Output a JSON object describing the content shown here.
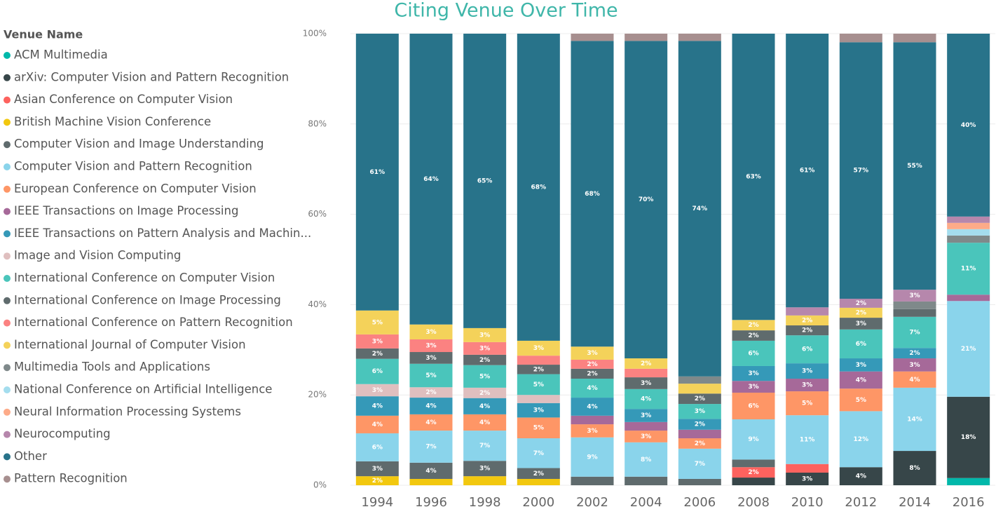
{
  "chart_data": {
    "type": "stacked_bar_100",
    "title": "Citing Venue Over Time",
    "legend_title": "Venue Name",
    "categories": [
      "1994",
      "1996",
      "1998",
      "2000",
      "2002",
      "2004",
      "2006",
      "2008",
      "2010",
      "2012",
      "2014",
      "2016"
    ],
    "ylim": [
      0,
      100
    ],
    "yticks": [
      {
        "value": 0,
        "label": "0%"
      },
      {
        "value": 20,
        "label": "20%"
      },
      {
        "value": 40,
        "label": "40%"
      },
      {
        "value": 60,
        "label": "60%"
      },
      {
        "value": 80,
        "label": "80%"
      },
      {
        "value": 100,
        "label": "100%"
      }
    ],
    "grid": true,
    "series": [
      {
        "name": "ACM Multimedia",
        "color": "#01B8AA",
        "values": [
          null,
          null,
          null,
          null,
          null,
          null,
          null,
          null,
          null,
          null,
          null,
          1.6
        ],
        "value_labels": [
          null,
          null,
          null,
          null,
          null,
          null,
          null,
          null,
          null,
          null,
          null,
          null
        ]
      },
      {
        "name": "arXiv: Computer Vision and Pattern Recognition",
        "color": "#374649",
        "values": [
          null,
          null,
          null,
          null,
          null,
          null,
          null,
          1.7,
          2.8,
          4,
          7.6,
          18
        ],
        "value_labels": [
          null,
          null,
          null,
          null,
          null,
          null,
          null,
          null,
          "3%",
          "4%",
          "8%",
          "18%"
        ]
      },
      {
        "name": "Asian Conference on Computer Vision",
        "color": "#FD625E",
        "values": [
          null,
          null,
          null,
          null,
          null,
          null,
          null,
          2.3,
          1.9,
          null,
          null,
          null
        ],
        "value_labels": [
          null,
          null,
          null,
          null,
          null,
          null,
          null,
          "2%",
          null,
          null,
          null,
          null
        ]
      },
      {
        "name": "British Machine Vision Conference",
        "color": "#F2C80F",
        "values": [
          2,
          1.4,
          2,
          1.4,
          null,
          null,
          null,
          null,
          null,
          null,
          null,
          null
        ],
        "value_labels": [
          "2%",
          null,
          null,
          null,
          null,
          null,
          null,
          null,
          null,
          null,
          null,
          null
        ]
      },
      {
        "name": "Computer Vision and Image Understanding",
        "color": "#5F6B6D",
        "values": [
          3.3,
          3.6,
          3.4,
          2.4,
          1.9,
          1.9,
          1.4,
          1.7,
          null,
          null,
          null,
          null
        ],
        "value_labels": [
          "3%",
          "4%",
          "3%",
          "2%",
          null,
          null,
          null,
          null,
          null,
          null,
          null,
          null
        ]
      },
      {
        "name": "Computer Vision and Pattern Recognition",
        "color": "#8AD4EB",
        "values": [
          6.2,
          7.1,
          6.7,
          6.6,
          8.7,
          7.6,
          6.7,
          8.9,
          10.8,
          12.4,
          14,
          21.2
        ],
        "value_labels": [
          "6%",
          "7%",
          "7%",
          "7%",
          "9%",
          "8%",
          "7%",
          "9%",
          "11%",
          "12%",
          "14%",
          "21%"
        ]
      },
      {
        "name": "European Conference on Computer Vision",
        "color": "#FE9666",
        "values": [
          3.9,
          3.6,
          3.6,
          4.6,
          2.9,
          2.6,
          2.3,
          5.9,
          5.3,
          5,
          3.6,
          null
        ],
        "value_labels": [
          "4%",
          "4%",
          "4%",
          "5%",
          "3%",
          "3%",
          "2%",
          "6%",
          "5%",
          "5%",
          "4%",
          null
        ]
      },
      {
        "name": "IEEE Transactions on Image Processing",
        "color": "#A66999",
        "values": [
          null,
          null,
          null,
          null,
          1.9,
          1.9,
          1.9,
          2.6,
          2.8,
          3.8,
          2.9,
          1.4
        ],
        "value_labels": [
          null,
          null,
          null,
          null,
          null,
          null,
          null,
          "3%",
          "3%",
          "4%",
          "3%",
          null
        ]
      },
      {
        "name": "IEEE Transactions on Pattern Analysis and Machin...",
        "color": "#3599B8",
        "values": [
          4.3,
          3.7,
          3.6,
          3.2,
          4,
          2.9,
          2.4,
          3.3,
          3.4,
          2.9,
          2.3,
          null
        ],
        "value_labels": [
          "4%",
          "4%",
          "4%",
          "3%",
          "4%",
          "3%",
          "2%",
          "3%",
          "3%",
          "3%",
          "2%",
          null
        ]
      },
      {
        "name": "Image and Vision Computing",
        "color": "#DFBFBF",
        "values": [
          2.7,
          2.3,
          2.3,
          1.8,
          null,
          null,
          null,
          null,
          null,
          null,
          null,
          null
        ],
        "value_labels": [
          "3%",
          "2%",
          "2%",
          null,
          null,
          null,
          null,
          null,
          null,
          null,
          null,
          null
        ]
      },
      {
        "name": "International Conference on Computer Vision",
        "color": "#4AC5BB",
        "values": [
          5.6,
          5.2,
          5,
          4.6,
          4.2,
          4.4,
          3.3,
          5.6,
          6.2,
          6.4,
          6.9,
          11.5
        ],
        "value_labels": [
          "6%",
          "5%",
          "5%",
          "5%",
          "4%",
          "4%",
          "3%",
          "6%",
          "6%",
          "6%",
          "7%",
          "11%"
        ]
      },
      {
        "name": "International Conference on Image Processing",
        "color": "#5F6B6D",
        "values": [
          2.3,
          2.6,
          2.3,
          2.1,
          2.2,
          2.6,
          2.3,
          2.3,
          2.2,
          2.6,
          1.7,
          null
        ],
        "value_labels": [
          "2%",
          "3%",
          "2%",
          "2%",
          "2%",
          "3%",
          "2%",
          "2%",
          "2%",
          "3%",
          null,
          null
        ]
      },
      {
        "name": "International Conference on Pattern Recognition",
        "color": "#FB8281",
        "values": [
          3.1,
          2.8,
          2.8,
          2,
          2,
          1.9,
          null,
          null,
          null,
          null,
          null,
          null
        ],
        "value_labels": [
          "3%",
          "3%",
          "3%",
          null,
          "2%",
          null,
          null,
          null,
          null,
          null,
          null,
          null
        ]
      },
      {
        "name": "International Journal of Computer Vision",
        "color": "#F4D25A",
        "values": [
          5.3,
          3.3,
          3.1,
          3.3,
          2.9,
          2.3,
          2.2,
          2.3,
          2.2,
          2.2,
          null,
          null
        ],
        "value_labels": [
          "5%",
          "3%",
          "3%",
          "3%",
          "3%",
          "2%",
          null,
          "2%",
          "2%",
          "2%",
          null,
          null
        ]
      },
      {
        "name": "Multimedia Tools and Applications",
        "color": "#7F898A",
        "values": [
          null,
          null,
          null,
          null,
          null,
          null,
          1.6,
          null,
          null,
          null,
          1.7,
          1.6
        ],
        "value_labels": [
          null,
          null,
          null,
          null,
          null,
          null,
          null,
          null,
          null,
          null,
          null,
          null
        ]
      },
      {
        "name": "National Conference on Artificial Intelligence",
        "color": "#A4DDEE",
        "values": [
          null,
          null,
          null,
          null,
          null,
          null,
          null,
          null,
          null,
          null,
          null,
          1.4
        ],
        "value_labels": [
          null,
          null,
          null,
          null,
          null,
          null,
          null,
          null,
          null,
          null,
          null,
          null
        ]
      },
      {
        "name": "Neural Information Processing Systems",
        "color": "#FDAB89",
        "values": [
          null,
          null,
          null,
          null,
          null,
          null,
          null,
          null,
          null,
          null,
          null,
          1.4
        ],
        "value_labels": [
          null,
          null,
          null,
          null,
          null,
          null,
          null,
          null,
          null,
          null,
          null,
          null
        ]
      },
      {
        "name": "Neurocomputing",
        "color": "#B687AC",
        "values": [
          null,
          null,
          null,
          null,
          null,
          null,
          null,
          null,
          1.8,
          2,
          2.6,
          1.4
        ],
        "value_labels": [
          null,
          null,
          null,
          null,
          null,
          null,
          null,
          null,
          null,
          "2%",
          "3%",
          null
        ]
      },
      {
        "name": "Other",
        "color": "#28738A",
        "values": [
          61.3,
          64.4,
          65.2,
          68,
          67.7,
          70.3,
          74.3,
          63.4,
          60.6,
          56.8,
          54.8,
          40.5
        ],
        "value_labels": [
          "61%",
          "64%",
          "65%",
          "68%",
          "68%",
          "70%",
          "74%",
          "63%",
          "61%",
          "57%",
          "55%",
          "40%"
        ]
      },
      {
        "name": "Pattern Recognition",
        "color": "#A78F8F",
        "values": [
          null,
          null,
          null,
          null,
          1.6,
          1.6,
          1.6,
          null,
          null,
          1.9,
          1.9,
          null
        ],
        "value_labels": [
          null,
          null,
          null,
          null,
          null,
          null,
          null,
          null,
          null,
          null,
          null,
          null
        ]
      }
    ]
  }
}
